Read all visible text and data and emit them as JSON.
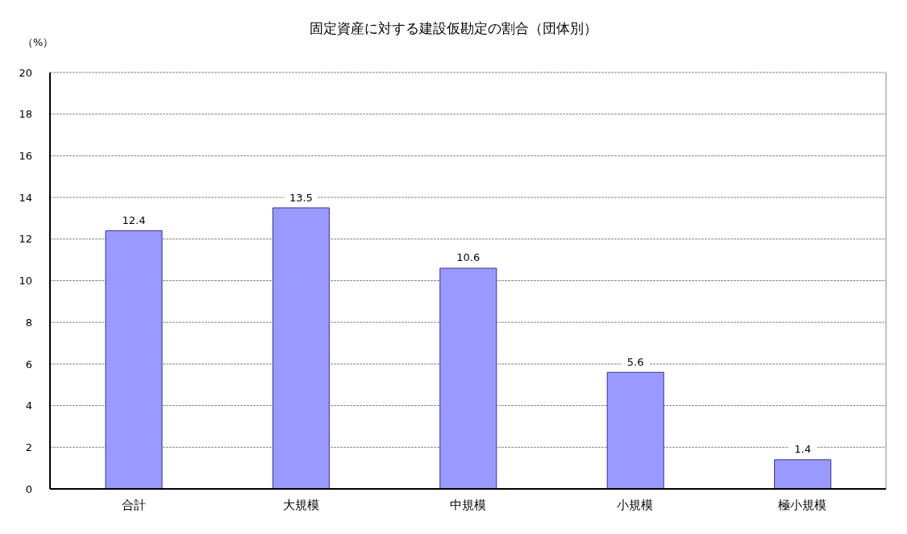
{
  "chart_data": {
    "type": "bar",
    "title": "固定資産に対する建設仮勘定の割合（団体別）",
    "ylabel": "（%）",
    "categories": [
      "合計",
      "大規模",
      "中規模",
      "小規模",
      "極小規模"
    ],
    "values": [
      12.4,
      13.5,
      10.6,
      5.6,
      1.4
    ],
    "color": "#9999ff",
    "ylim": [
      0,
      20
    ],
    "yticks": [
      0,
      2,
      4,
      6,
      8,
      10,
      12,
      14,
      16,
      18,
      20
    ],
    "grid": "y",
    "data_labels": true
  }
}
